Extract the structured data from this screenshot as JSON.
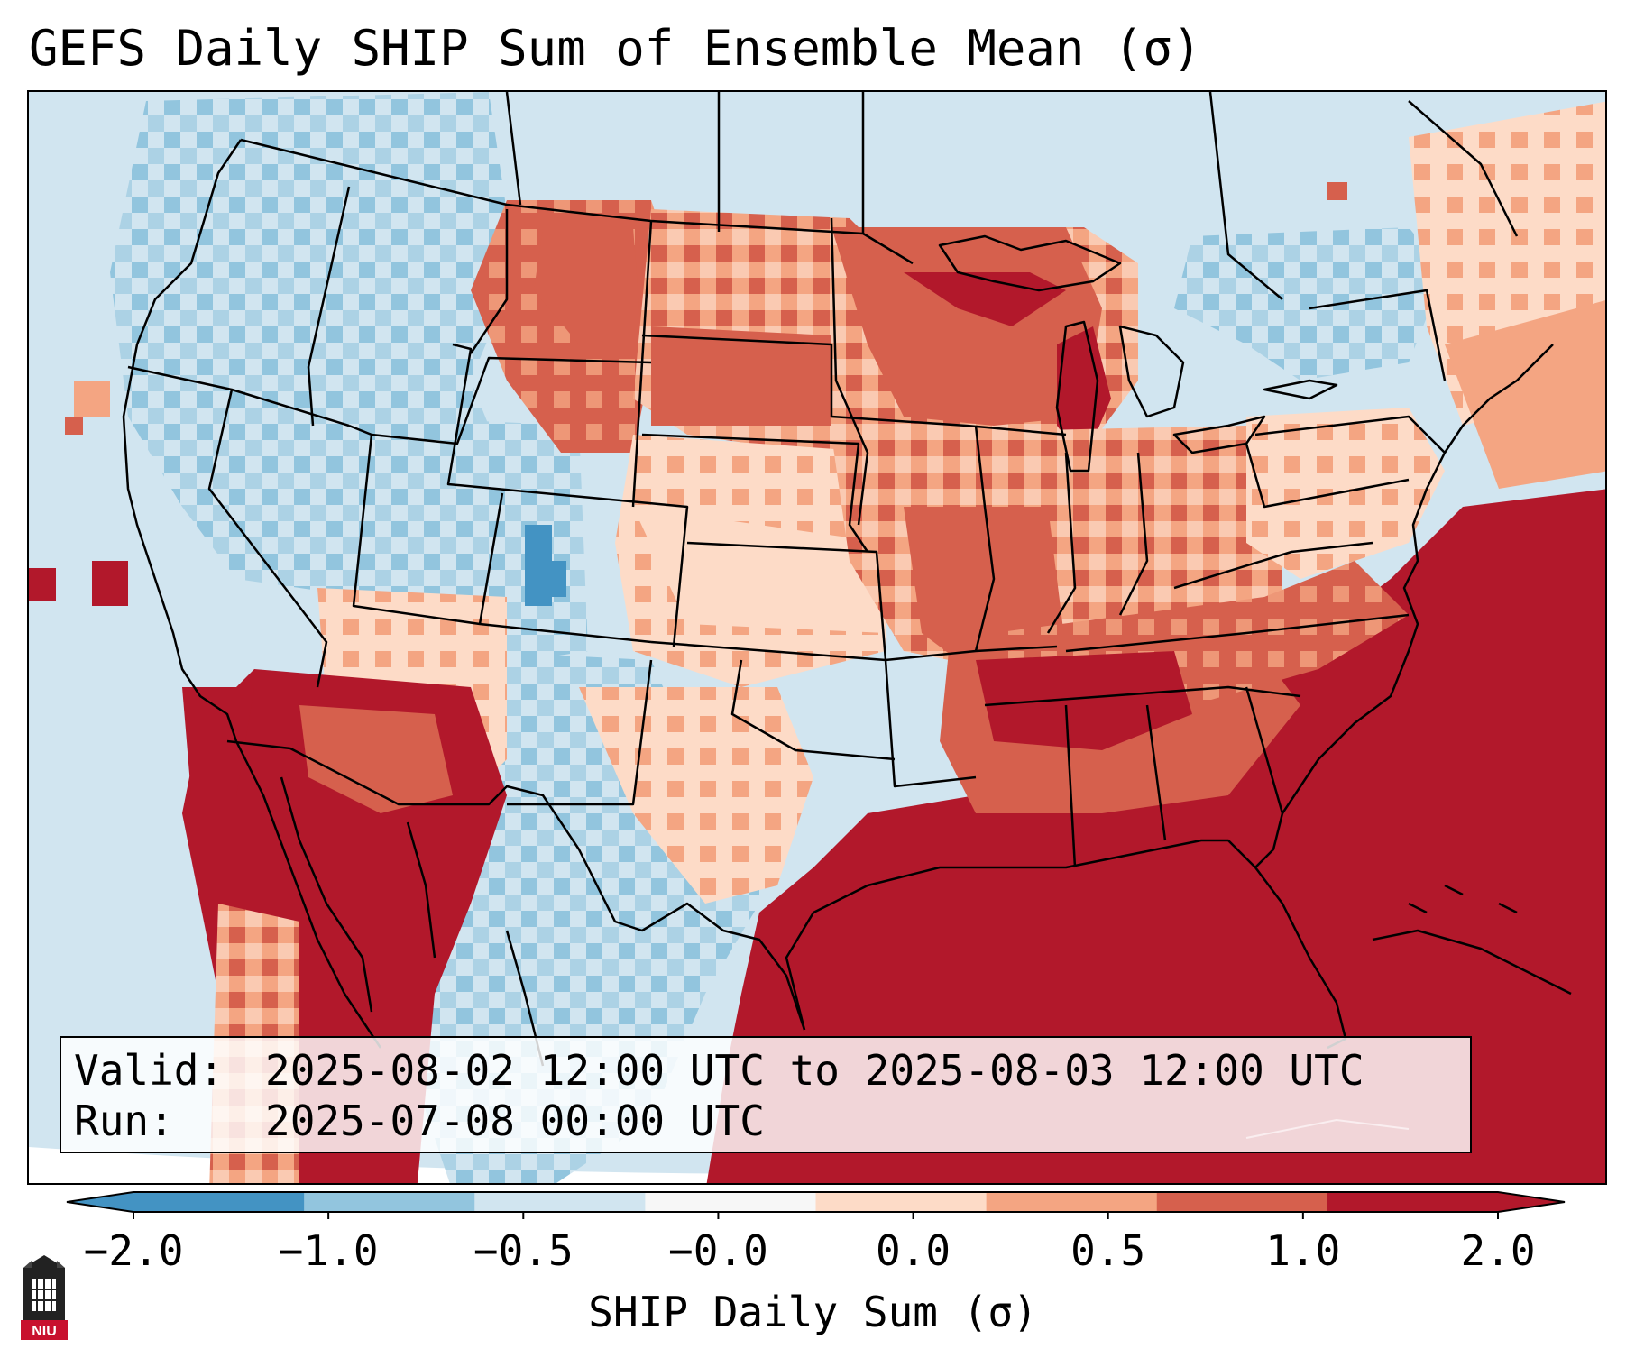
{
  "title": "GEFS Daily SHIP Sum of Ensemble Mean (σ)",
  "info": {
    "valid_label": "Valid:",
    "valid_value": "2025-08-02 12:00 UTC to 2025-08-03 12:00 UTC",
    "run_label": "Run:",
    "run_value": "2025-07-08 00:00 UTC"
  },
  "colorbar": {
    "label": "SHIP Daily Sum (σ)",
    "ticks": [
      "−2.0",
      "−1.0",
      "−0.5",
      "−0.0",
      "0.0",
      "0.5",
      "1.0",
      "2.0"
    ],
    "colors": [
      "#4393c3",
      "#92c5de",
      "#d1e5f0",
      "#f7f7f7",
      "#fddbc7",
      "#f4a582",
      "#d6604d",
      "#b2182b"
    ],
    "extend": "both"
  },
  "logo": {
    "text": "NIU",
    "icon": "niu-castle-logo"
  },
  "map": {
    "region": "Continental United States",
    "projection": "Lambert Conformal",
    "field": "SHIP daily sum anomaly (σ)",
    "features": [
      "coastlines",
      "state borders",
      "country borders",
      "Great Lakes"
    ]
  }
}
